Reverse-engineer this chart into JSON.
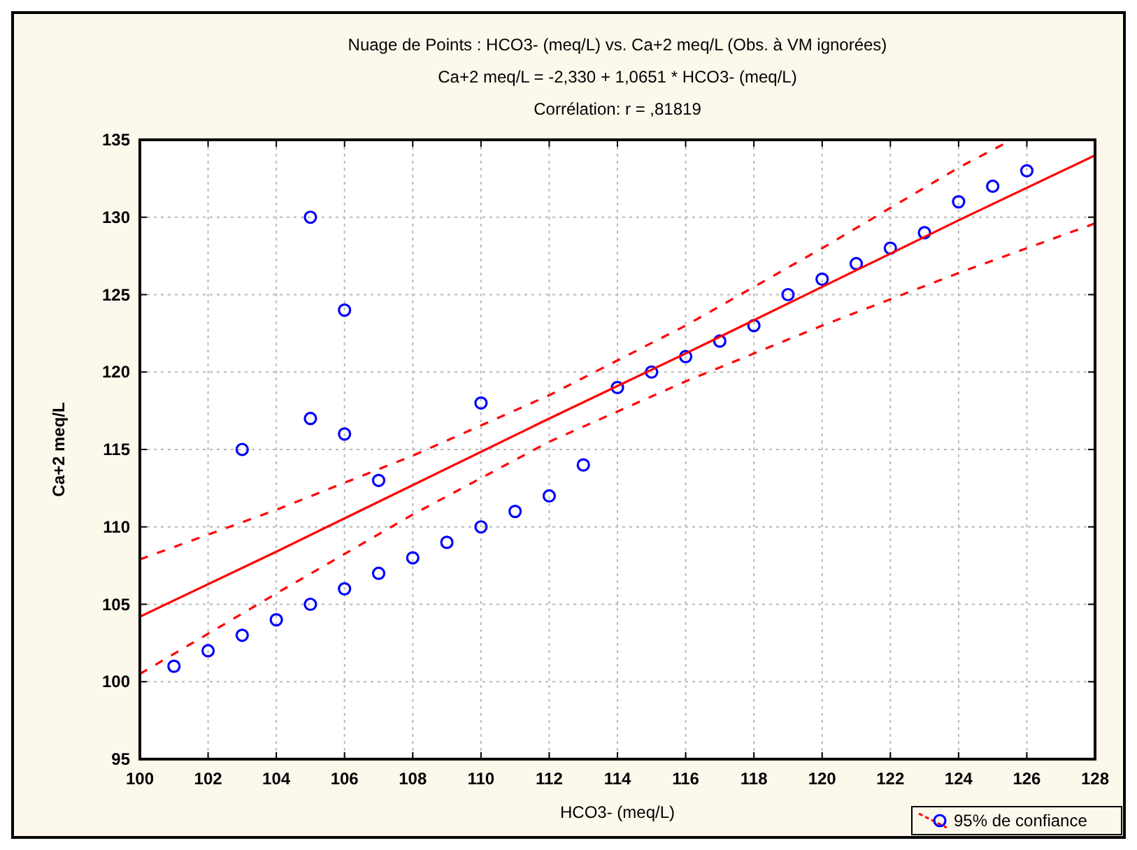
{
  "chart_data": {
    "type": "scatter",
    "title": "Nuage de Points : HCO3-  (meq/L) vs. Ca+2 meq/L (Obs. à VM ignorées)",
    "subtitle": "Ca+2 meq/L = -2,330 + 1,0651 * HCO3-  (meq/L)",
    "annotations": [
      "Corrélation: r = ,81819"
    ],
    "xlabel": "HCO3-  (meq/L)",
    "ylabel": "Ca+2 meq/L",
    "xlim": [
      100,
      128
    ],
    "ylim": [
      95,
      135
    ],
    "xticks": [
      100,
      102,
      104,
      106,
      108,
      110,
      112,
      114,
      116,
      118,
      120,
      122,
      124,
      126,
      128
    ],
    "yticks": [
      95,
      100,
      105,
      110,
      115,
      120,
      125,
      130,
      135
    ],
    "grid": true,
    "legend": "bottom right",
    "series": [
      {
        "marker": "circle",
        "color": "#0000ff",
        "x": [
          101,
          102,
          103,
          103,
          104,
          105,
          105,
          105,
          106,
          106,
          106,
          107,
          107,
          108,
          109,
          110,
          110,
          111,
          112,
          113,
          114,
          115,
          116,
          117,
          118,
          119,
          120,
          121,
          122,
          123,
          124,
          125,
          126
        ],
        "values": [
          101,
          102,
          103,
          115,
          104,
          105,
          117,
          130,
          106,
          116,
          124,
          107,
          113,
          108,
          109,
          110,
          118,
          111,
          112,
          114,
          119,
          120,
          121,
          122,
          123,
          125,
          126,
          127,
          128,
          129,
          131,
          132,
          133
        ]
      },
      {
        "type": "line",
        "color": "#ff0000",
        "line_style": "solid",
        "x": [
          100,
          104,
          108,
          112,
          116,
          120,
          124,
          128
        ],
        "values": [
          104.2,
          108.4,
          112.7,
          117.0,
          121.2,
          125.5,
          129.8,
          134.0
        ]
      },
      {
        "type": "line",
        "name": "95% de confiance",
        "color": "#ff0000",
        "line_style": "dashed",
        "x": [
          100,
          104,
          108,
          112,
          116,
          120,
          124,
          125.3
        ],
        "values": [
          107.9,
          111.1,
          114.6,
          118.5,
          123.0,
          128.0,
          133.2,
          134.7
        ]
      },
      {
        "type": "line",
        "color": "#ff0000",
        "line_style": "dashed",
        "x": [
          100,
          104,
          108,
          112,
          116,
          120,
          124,
          128
        ],
        "values": [
          100.5,
          105.7,
          110.8,
          115.5,
          119.4,
          123.0,
          126.4,
          129.6
        ]
      }
    ]
  }
}
